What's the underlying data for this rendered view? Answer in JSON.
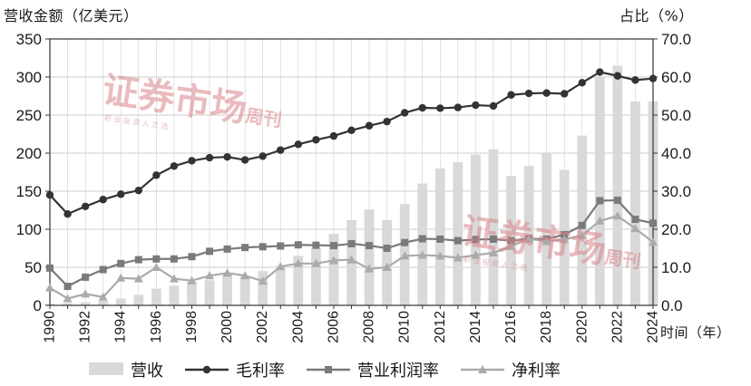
{
  "chart_data": {
    "type": "bar+line",
    "y_left_title": "营收金额（亿美元）",
    "y_right_title": "占比（%）",
    "x_title": "时间（年）",
    "ylim_left": [
      0,
      350
    ],
    "ylim_right": [
      0,
      70
    ],
    "left_ticks": [
      "0",
      "50",
      "100",
      "150",
      "200",
      "250",
      "300",
      "350"
    ],
    "right_ticks": [
      "0.0",
      "10.0",
      "20.0",
      "30.0",
      "40.0",
      "50.0",
      "60.0",
      "70.0"
    ],
    "x": [
      1990,
      1991,
      1992,
      1993,
      1994,
      1995,
      1996,
      1997,
      1998,
      1999,
      2000,
      2001,
      2002,
      2003,
      2004,
      2005,
      2006,
      2007,
      2008,
      2009,
      2010,
      2011,
      2012,
      2013,
      2014,
      2015,
      2016,
      2017,
      2018,
      2019,
      2020,
      2021,
      2022,
      2023,
      2024
    ],
    "x_tick_labels": [
      "1990",
      "1992",
      "1994",
      "1996",
      "1998",
      "2000",
      "2002",
      "2004",
      "2006",
      "2008",
      "2010",
      "2012",
      "2014",
      "2016",
      "2018",
      "2020",
      "2022",
      "2024"
    ],
    "grid": true,
    "legend_position": "bottom",
    "series": [
      {
        "name": "营收",
        "type": "bar",
        "axis": "left",
        "color": "#d9d9d9",
        "values": [
          2,
          3,
          4,
          6,
          9,
          14,
          22,
          26,
          31,
          33,
          42,
          38,
          45,
          52,
          65,
          75,
          94,
          112,
          126,
          112,
          133,
          160,
          180,
          188,
          198,
          205,
          170,
          183,
          200,
          178,
          223,
          300,
          315,
          268,
          268
        ]
      },
      {
        "name": "毛利率",
        "type": "line",
        "axis": "right",
        "color": "#333333",
        "marker": "circle",
        "values": [
          29.0,
          24.0,
          26.0,
          27.8,
          29.2,
          30.2,
          34.2,
          36.6,
          38.0,
          38.8,
          39.0,
          38.2,
          39.2,
          40.8,
          42.3,
          43.5,
          44.5,
          46.0,
          47.2,
          48.3,
          50.6,
          51.9,
          51.8,
          52.0,
          52.6,
          52.4,
          55.3,
          55.7,
          55.8,
          55.6,
          58.5,
          61.3,
          60.3,
          59.2,
          59.6
        ]
      },
      {
        "name": "营业利润率",
        "type": "line",
        "axis": "right",
        "color": "#7a7a7a",
        "marker": "square",
        "values": [
          9.8,
          5.0,
          7.4,
          9.4,
          11.0,
          12.0,
          12.2,
          12.2,
          12.8,
          14.2,
          14.8,
          15.2,
          15.4,
          15.6,
          15.9,
          15.8,
          15.7,
          16.2,
          15.7,
          15.0,
          16.5,
          17.5,
          17.4,
          17.0,
          17.3,
          17.4,
          17.0,
          17.5,
          17.4,
          18.6,
          21.0,
          27.5,
          27.6,
          22.6,
          21.6
        ]
      },
      {
        "name": "净利率",
        "type": "line",
        "axis": "right",
        "color": "#ababab",
        "marker": "triangle",
        "values": [
          4.6,
          1.8,
          3.0,
          2.2,
          7.2,
          7.0,
          10.0,
          7.0,
          6.5,
          7.8,
          8.5,
          7.8,
          6.4,
          10.2,
          11.0,
          11.0,
          11.8,
          12.0,
          9.6,
          10.0,
          13.0,
          13.2,
          13.0,
          12.5,
          13.2,
          13.8,
          15.5,
          17.5,
          16.8,
          17.3,
          18.4,
          22.2,
          23.5,
          20.2,
          16.6
        ]
      }
    ]
  },
  "watermarks": [
    {
      "main": "证券市场",
      "side": "周刊",
      "sub": "职 业 投 资 人 之 选"
    },
    {
      "main": "证券市场",
      "side": "周刊",
      "sub": "职 业 投 资 人 之 选"
    }
  ]
}
